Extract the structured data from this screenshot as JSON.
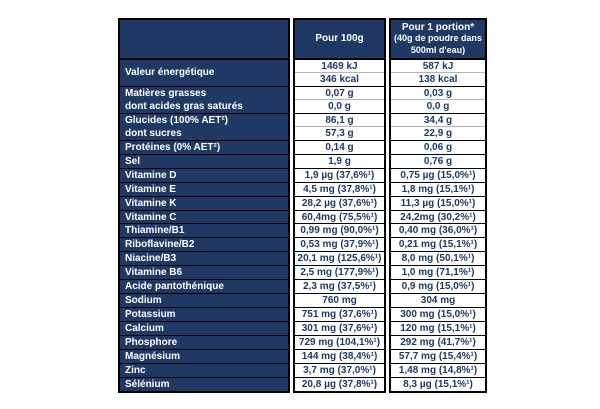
{
  "table": {
    "colors": {
      "header_bg": "#1f3864",
      "label_bg": "#1f3864",
      "label_text": "#ffffff",
      "value_text": "#1f3864",
      "border": "#000000",
      "row_divider": "#b3b3b3",
      "cell_bg": "#ffffff"
    },
    "header": {
      "col1": "",
      "col2": "Pour 100g",
      "col3_lines": [
        "Pour 1 portion*",
        "(40g de poudre dans",
        "500ml d'eau)"
      ]
    },
    "groups": [
      {
        "labels": [
          "Valeur énergétique"
        ],
        "label_merged": true,
        "per100g": [
          "1469 kJ",
          "346 kcal"
        ],
        "per_portion": [
          "587 kJ",
          "138 kcal"
        ]
      },
      {
        "labels": [
          "Matières grasses",
          "dont acides gras saturés"
        ],
        "per100g": [
          "0,07 g",
          "0,0 g"
        ],
        "per_portion": [
          "0,03 g",
          "0,0 g"
        ]
      },
      {
        "labels": [
          "Glucides (100% AET²)",
          "dont sucres"
        ],
        "per100g": [
          "86,1 g",
          "57,3 g"
        ],
        "per_portion": [
          "34,4 g",
          "22,9 g"
        ]
      },
      {
        "labels": [
          "Protéines (0% AET²)"
        ],
        "per100g": [
          "0,14 g"
        ],
        "per_portion": [
          "0,06 g"
        ]
      },
      {
        "labels": [
          "Sel"
        ],
        "per100g": [
          "1,9 g"
        ],
        "per_portion": [
          "0,76 g"
        ]
      },
      {
        "labels": [
          "Vitamine D"
        ],
        "per100g": [
          "1,9 µg (37,6%¹)"
        ],
        "per_portion": [
          "0,75 µg (15,0%¹)"
        ]
      },
      {
        "labels": [
          "Vitamine E"
        ],
        "per100g": [
          "4,5 mg (37,8%¹)"
        ],
        "per_portion": [
          "1,8 mg (15,1%¹)"
        ]
      },
      {
        "labels": [
          "Vitamine K"
        ],
        "per100g": [
          "28,2 µg (37,6%¹)"
        ],
        "per_portion": [
          "11,3 µg (15,0%¹)"
        ]
      },
      {
        "labels": [
          "Vitamine C"
        ],
        "per100g": [
          "60,4mg (75,5%¹)"
        ],
        "per_portion": [
          "24,2mg (30,2%¹)"
        ]
      },
      {
        "labels": [
          "Thiamine/B1"
        ],
        "per100g": [
          "0,99 mg (90,0%¹)"
        ],
        "per_portion": [
          "0,40 mg (36,0%¹)"
        ]
      },
      {
        "labels": [
          "Riboflavine/B2"
        ],
        "per100g": [
          "0,53 mg (37,9%¹)"
        ],
        "per_portion": [
          "0,21 mg (15,1%¹)"
        ]
      },
      {
        "labels": [
          "Niacine/B3"
        ],
        "per100g": [
          "20,1 mg (125,6%¹)"
        ],
        "per_portion": [
          "8,0 mg (50,1%¹)"
        ]
      },
      {
        "labels": [
          "Vitamine B6"
        ],
        "per100g": [
          "2,5 mg (177,9%¹)"
        ],
        "per_portion": [
          "1,0 mg (71,1%¹)"
        ]
      },
      {
        "labels": [
          "Acide pantothénique"
        ],
        "per100g": [
          "2,3 mg (37,5%¹)"
        ],
        "per_portion": [
          "0,9 mg (15,0%¹)"
        ]
      },
      {
        "labels": [
          "Sodium"
        ],
        "per100g": [
          "760 mg"
        ],
        "per_portion": [
          "304 mg"
        ]
      },
      {
        "labels": [
          "Potassium"
        ],
        "per100g": [
          "751 mg (37,6%¹)"
        ],
        "per_portion": [
          "300 mg (15,0%¹)"
        ]
      },
      {
        "labels": [
          "Calcium"
        ],
        "per100g": [
          "301 mg (37,6%¹)"
        ],
        "per_portion": [
          "120 mg (15,1%¹)"
        ]
      },
      {
        "labels": [
          "Phosphore"
        ],
        "per100g": [
          "729 mg (104,1%¹)"
        ],
        "per_portion": [
          "292 mg (41,7%¹)"
        ]
      },
      {
        "labels": [
          "Magnésium"
        ],
        "per100g": [
          "144 mg (38,4%¹)"
        ],
        "per_portion": [
          "57,7 mg (15,4%¹)"
        ]
      },
      {
        "labels": [
          "Zinc"
        ],
        "per100g": [
          "3,7 mg (37,0%¹)"
        ],
        "per_portion": [
          "1,48 mg (14,8%¹)"
        ]
      },
      {
        "labels": [
          "Sélénium"
        ],
        "per100g": [
          "20,8 µg (37,8%¹)"
        ],
        "per_portion": [
          "8,3 µg (15,1%¹)"
        ]
      }
    ]
  }
}
